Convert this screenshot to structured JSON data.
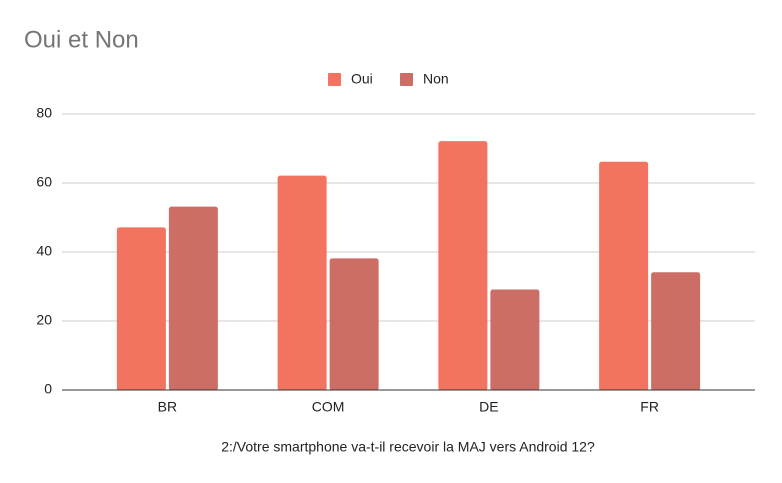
{
  "chart_data": {
    "type": "bar",
    "title": "Oui et Non",
    "x_label": "2:/Votre smartphone va-t-il recevoir la MAJ vers Android 12?",
    "categories": [
      "BR",
      "COM",
      "DE",
      "FR"
    ],
    "series": [
      {
        "name": "Oui",
        "color": "#f2735f",
        "values": [
          47,
          62,
          72,
          66
        ]
      },
      {
        "name": "Non",
        "color": "#cc6e66",
        "values": [
          53,
          38,
          29,
          34
        ]
      }
    ],
    "ylim": [
      0,
      80
    ],
    "yticks": [
      0,
      20,
      40,
      60,
      80
    ],
    "grid": true,
    "legend": "top"
  }
}
